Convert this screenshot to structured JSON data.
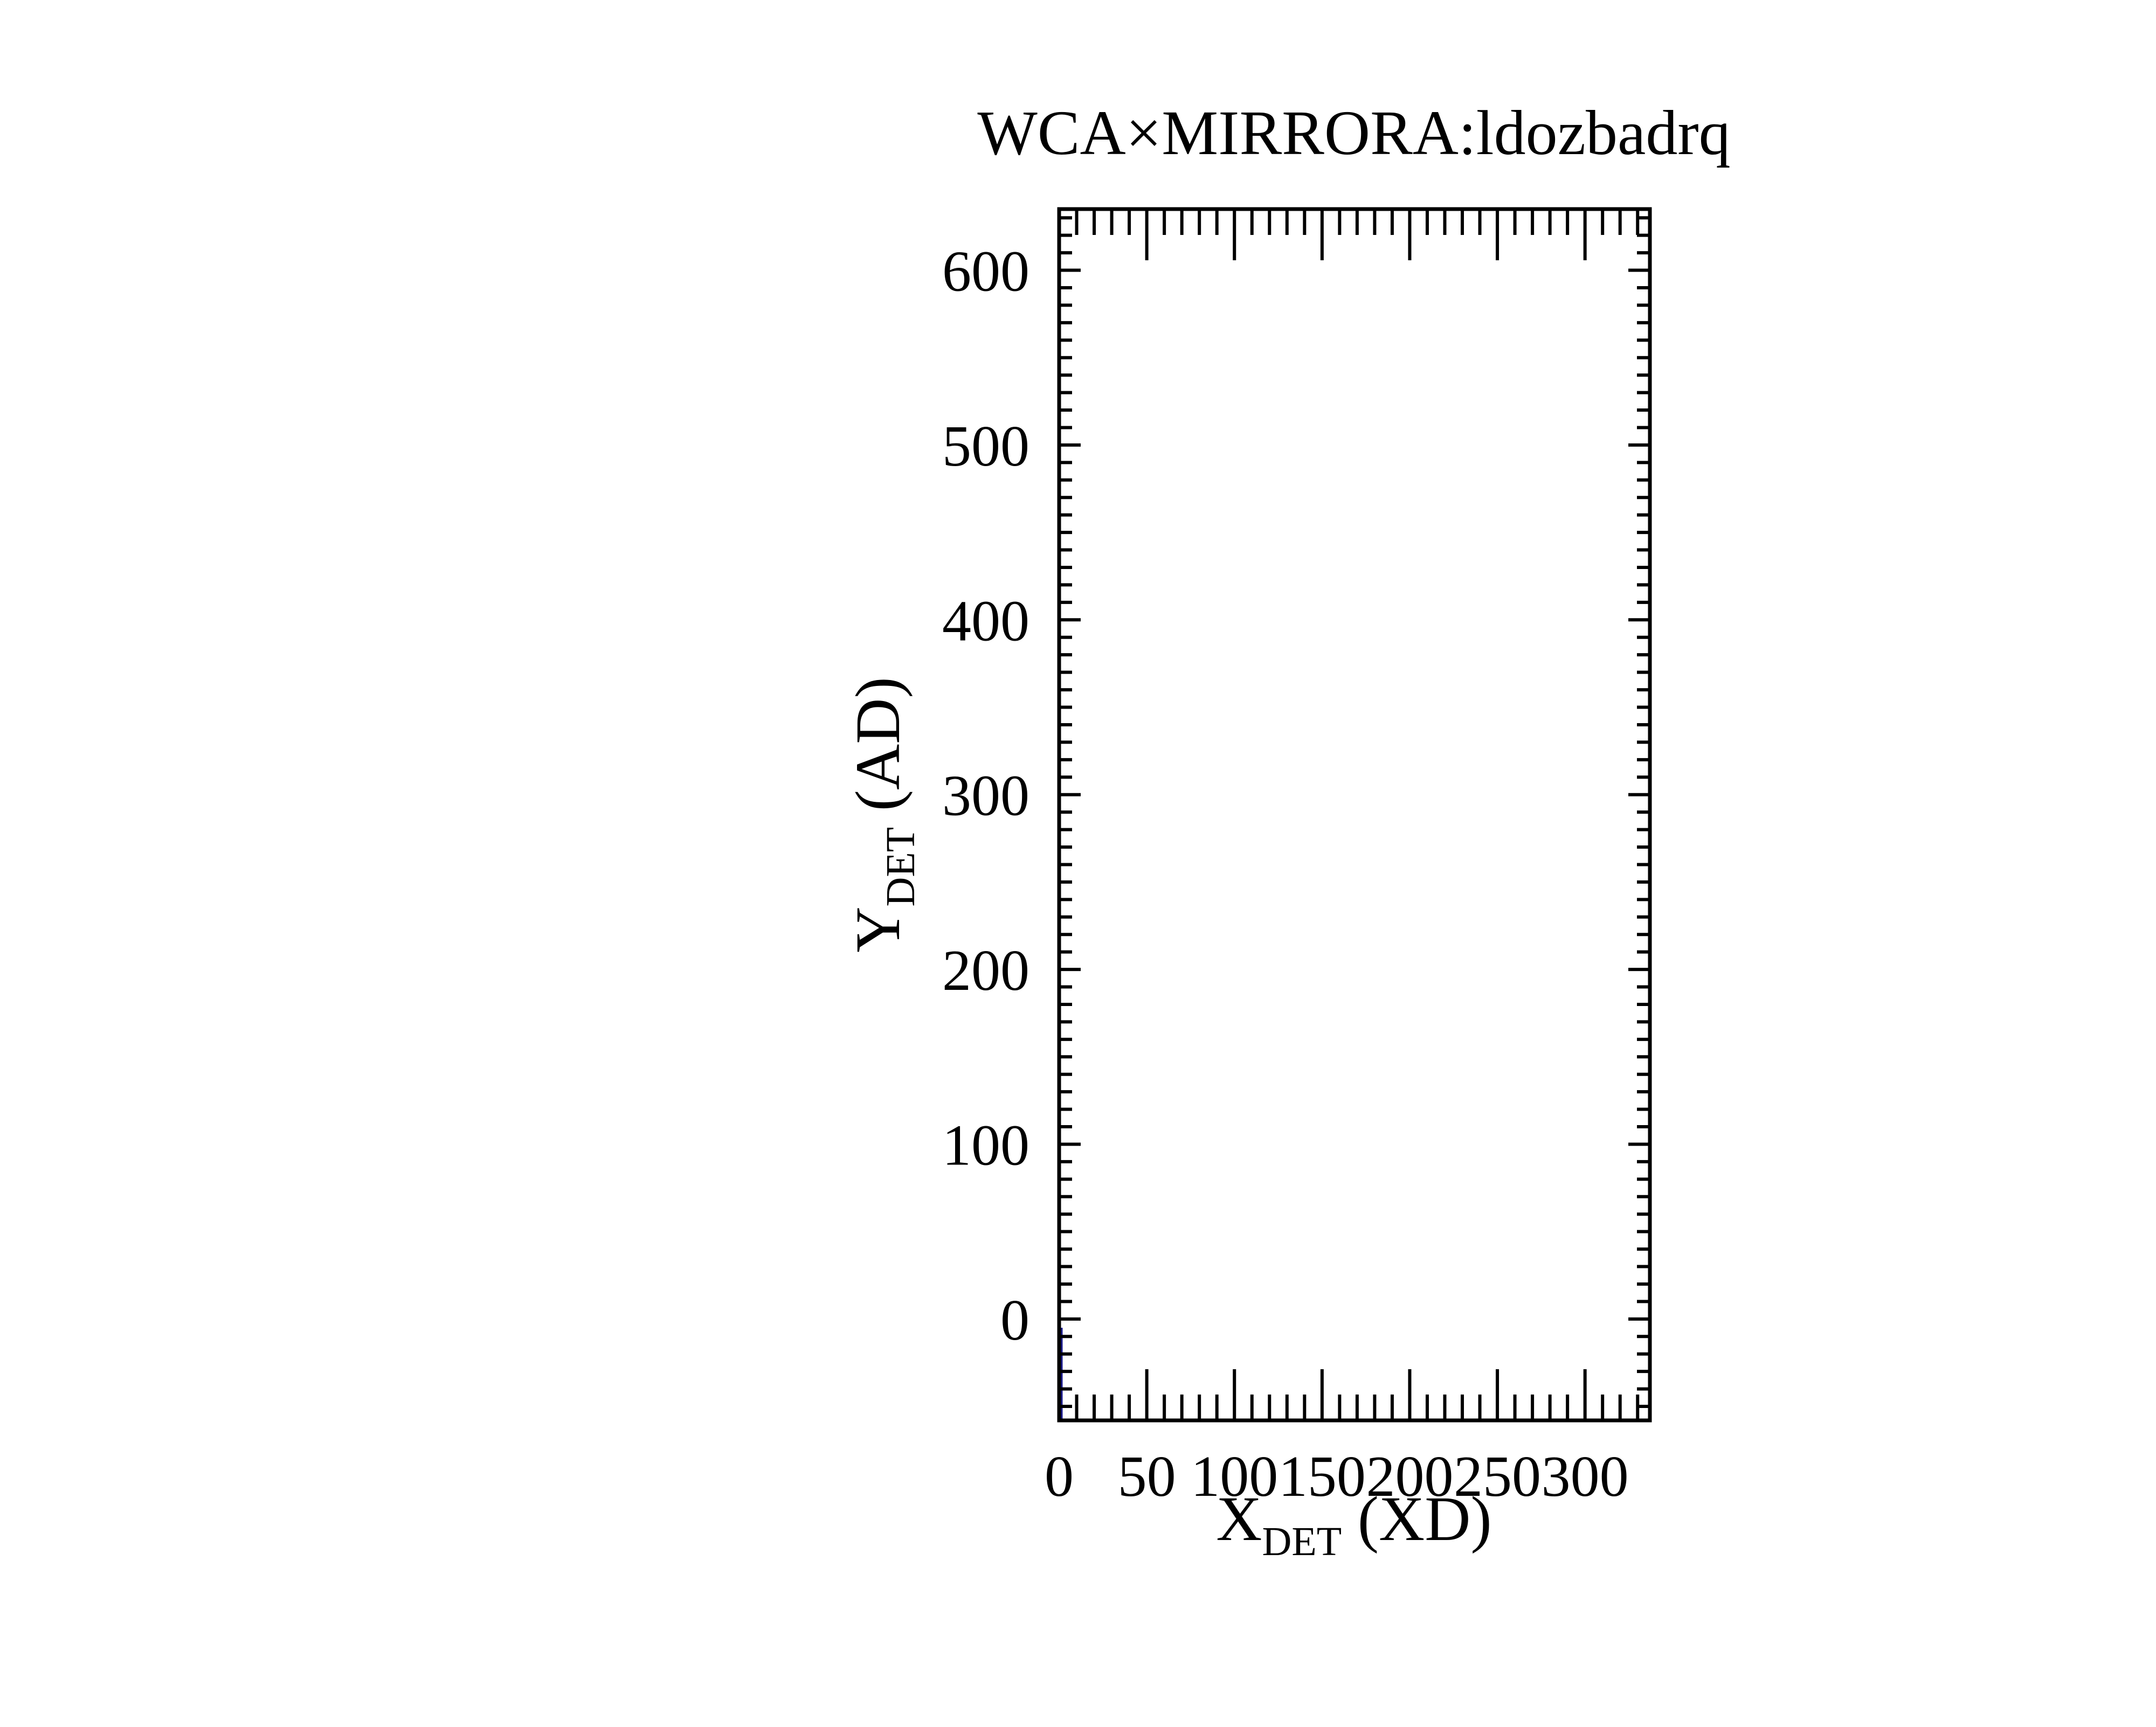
{
  "chart_data": {
    "type": "heatmap",
    "title": "WCA×MIRRORA:ldozbadrq",
    "xlabel": {
      "main": "X",
      "sub": "DET",
      "unit": " (XD)"
    },
    "ylabel": {
      "main": "Y",
      "sub": "DET",
      "unit": " (AD)"
    },
    "xlim": [
      0,
      337
    ],
    "ylim": [
      -58,
      635
    ],
    "x_ticks": [
      0,
      50,
      100,
      150,
      200,
      250,
      300
    ],
    "x_tick_labels": [
      "0",
      "50",
      "100",
      "150",
      "200",
      "250",
      "300"
    ],
    "x_minor_step": 10,
    "y_ticks": [
      0,
      100,
      200,
      300,
      400,
      500,
      600
    ],
    "y_tick_labels": [
      "0",
      "100",
      "200",
      "300",
      "400",
      "500",
      "600"
    ],
    "y_minor_step": 10,
    "grid": false,
    "legend": "none",
    "cells": [
      {
        "x0": 0,
        "x1": 2,
        "y0": -58,
        "y1": -5,
        "value": 1
      }
    ],
    "colors": {
      "cell": "#1a1a8c",
      "axis": "#000000",
      "background": "#ffffff"
    }
  }
}
